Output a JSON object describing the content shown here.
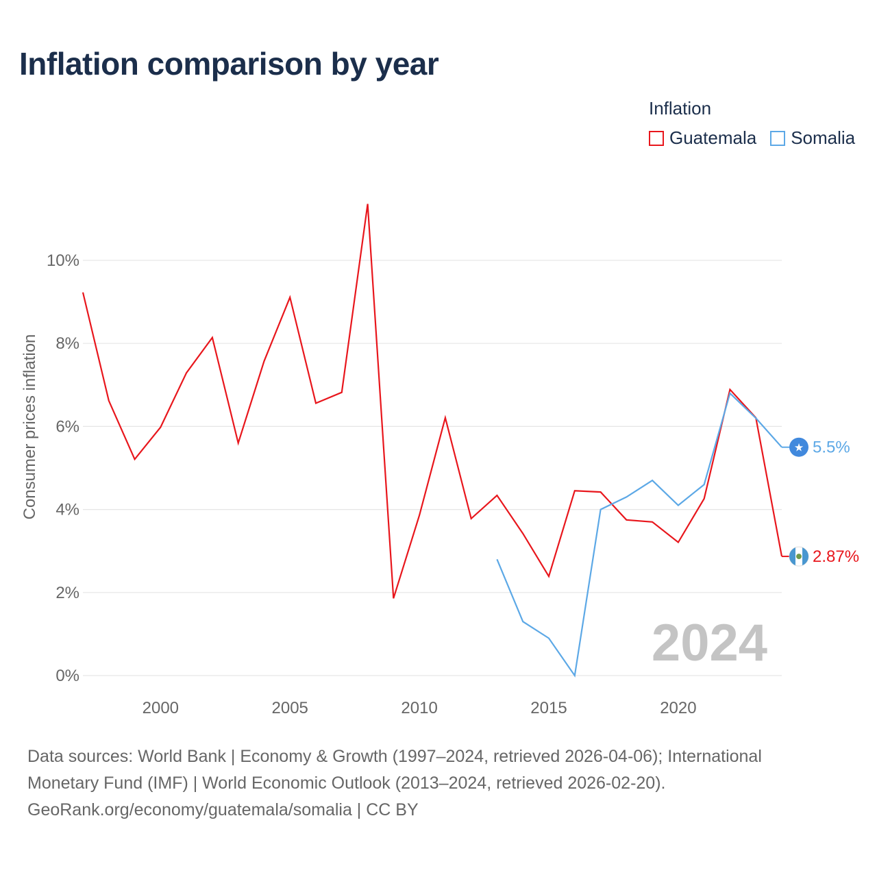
{
  "title": "Inflation comparison by year",
  "legend": {
    "title": "Inflation",
    "items": [
      {
        "label": "Guatemala",
        "color": "#e8161c"
      },
      {
        "label": "Somalia",
        "color": "#5ca8e6"
      }
    ]
  },
  "chart_data": {
    "type": "line",
    "title": "Inflation comparison by year",
    "ylabel": "Consumer prices inflation",
    "xlabel": "",
    "xlim": [
      1997,
      2024
    ],
    "ylim": [
      0,
      11.5
    ],
    "x_ticks": [
      {
        "value": 2000,
        "label": "2000"
      },
      {
        "value": 2005,
        "label": "2005"
      },
      {
        "value": 2010,
        "label": "2010"
      },
      {
        "value": 2015,
        "label": "2015"
      },
      {
        "value": 2020,
        "label": "2020"
      }
    ],
    "y_ticks": [
      {
        "value": 0,
        "label": "0%"
      },
      {
        "value": 2,
        "label": "2%"
      },
      {
        "value": 4,
        "label": "4%"
      },
      {
        "value": 6,
        "label": "6%"
      },
      {
        "value": 8,
        "label": "8%"
      },
      {
        "value": 10,
        "label": "10%"
      }
    ],
    "grid": true,
    "year_watermark": "2024",
    "series": [
      {
        "name": "Guatemala",
        "color": "#e8161c",
        "end_label": "2.87%",
        "x": [
          1997,
          1998,
          1999,
          2000,
          2001,
          2002,
          2003,
          2004,
          2005,
          2006,
          2007,
          2008,
          2009,
          2010,
          2011,
          2012,
          2013,
          2014,
          2015,
          2016,
          2017,
          2018,
          2019,
          2020,
          2021,
          2022,
          2023,
          2024
        ],
        "values": [
          9.23,
          6.62,
          5.21,
          5.98,
          7.29,
          8.14,
          5.6,
          7.57,
          9.11,
          6.56,
          6.82,
          11.36,
          1.86,
          3.86,
          6.21,
          3.78,
          4.34,
          3.42,
          2.39,
          4.45,
          4.42,
          3.75,
          3.7,
          3.21,
          4.26,
          6.89,
          6.21,
          2.87
        ]
      },
      {
        "name": "Somalia",
        "color": "#5ca8e6",
        "end_label": "5.5%",
        "x": [
          2013,
          2014,
          2015,
          2016,
          2017,
          2018,
          2019,
          2020,
          2021,
          2022,
          2023,
          2024
        ],
        "values": [
          2.8,
          1.3,
          0.9,
          0.0,
          4.0,
          4.3,
          4.7,
          4.1,
          4.6,
          6.8,
          6.2,
          5.5
        ]
      }
    ]
  },
  "footer": {
    "line1": "Data sources: World Bank | Economy & Growth (1997–2024, retrieved 2026-04-06); International",
    "line2": "Monetary Fund (IMF) | World Economic Outlook (2013–2024, retrieved 2026-02-20).",
    "line3": "GeoRank.org/economy/guatemala/somalia | CC BY"
  }
}
